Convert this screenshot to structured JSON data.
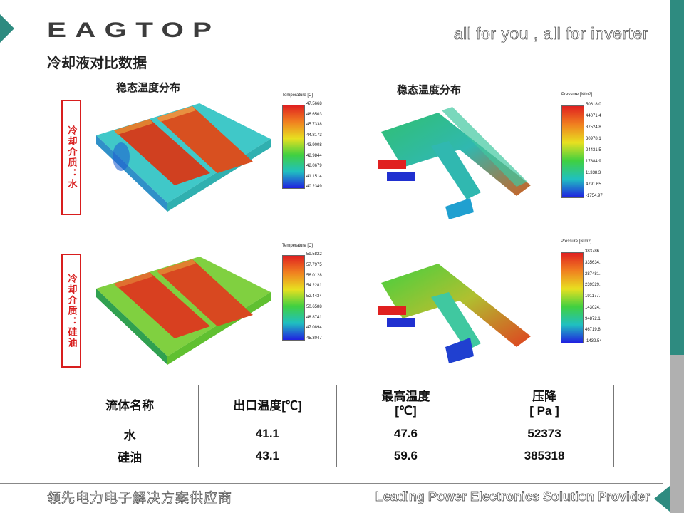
{
  "header": {
    "logo": "EAGTOP",
    "tagline": "all for you , all for inverter"
  },
  "page_title": "冷却液对比数据",
  "subtitles": {
    "temperature": "稳态温度分布",
    "pressure": "稳态温度分布"
  },
  "row_labels": {
    "water": "冷却介质：水",
    "oil": "冷却介质：硅油"
  },
  "legends": {
    "water_temp": {
      "title": "Temperature [C]",
      "ticks": [
        "47.5668",
        "46.6503",
        "45.7338",
        "44.8173",
        "43.9008",
        "42.9844",
        "42.0679",
        "41.1514",
        "40.2349"
      ]
    },
    "water_pressure": {
      "title": "Pressure [N/m2]",
      "ticks": [
        "50618.0",
        "44071.4",
        "37524.8",
        "30978.1",
        "24431.5",
        "17884.9",
        "11338.3",
        "4791.65",
        "-1754.97"
      ]
    },
    "oil_temp": {
      "title": "Temperature [C]",
      "ticks": [
        "59.5822",
        "57.7975",
        "56.0128",
        "54.2281",
        "52.4434",
        "50.6588",
        "48.8741",
        "47.0894",
        "45.3047"
      ]
    },
    "oil_pressure": {
      "title": "Pressure [N/m2]",
      "ticks": [
        "383786.",
        "335634.",
        "287481.",
        "239329.",
        "191177.",
        "143024.",
        "94872.1",
        "46719.8",
        "-1432.54"
      ]
    }
  },
  "table": {
    "headers": [
      "流体名称",
      "出口温度[℃]",
      "最高温度\n[℃]",
      "压降\n[ Pa ]"
    ],
    "rows": [
      [
        "水",
        "41.1",
        "47.6",
        "52373"
      ],
      [
        "硅油",
        "43.1",
        "59.6",
        "385318"
      ]
    ]
  },
  "footer": {
    "cn": "领先电力电子解决方案供应商",
    "en": "Leading Power Electronics Solution Provider"
  },
  "colors": {
    "accent": "#2e8b80",
    "label_red": "#d81e1e"
  }
}
